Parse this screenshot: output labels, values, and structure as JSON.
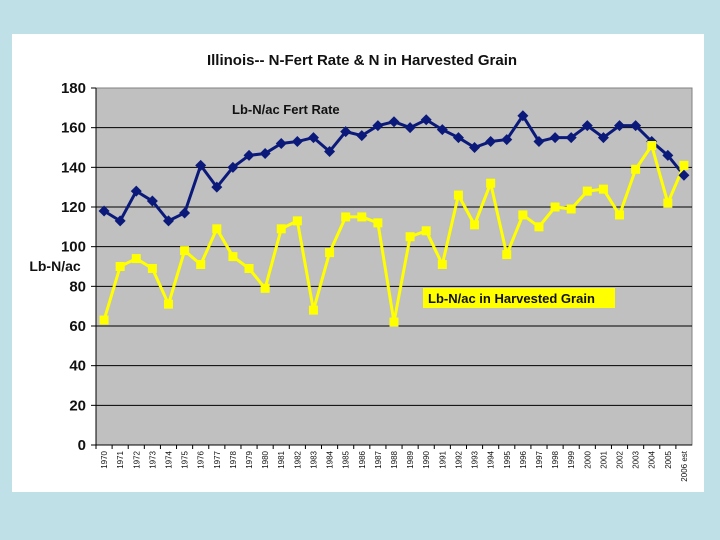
{
  "colors": {
    "background": "#bfe0e6",
    "plot_area": "#c0c0c0",
    "fert_series": "#0b1a7a",
    "grain_series": "#ffff00",
    "grain_label_bg": "#ffff00"
  },
  "chart_data": {
    "type": "line",
    "title": "Illinois-- N-Fert Rate & N in Harvested Grain",
    "xlabel": "",
    "ylabel": "Lb-N/ac",
    "ylim": [
      0,
      180
    ],
    "yticks": [
      0,
      20,
      40,
      60,
      80,
      100,
      120,
      140,
      160,
      180
    ],
    "grid": true,
    "categories": [
      "1970",
      "1971",
      "1972",
      "1973",
      "1974",
      "1975",
      "1976",
      "1977",
      "1978",
      "1979",
      "1980",
      "1981",
      "1982",
      "1983",
      "1984",
      "1985",
      "1986",
      "1987",
      "1988",
      "1989",
      "1990",
      "1991",
      "1992",
      "1993",
      "1994",
      "1995",
      "1996",
      "1997",
      "1998",
      "1999",
      "2000",
      "2001",
      "2002",
      "2003",
      "2004",
      "2005",
      "2006 est"
    ],
    "series": [
      {
        "name": "Lb-N/ac Fert Rate",
        "marker": "diamond",
        "color": "#0b1a7a",
        "values": [
          118,
          113,
          128,
          123,
          113,
          117,
          141,
          130,
          140,
          146,
          147,
          152,
          153,
          155,
          148,
          158,
          156,
          161,
          163,
          160,
          164,
          159,
          155,
          150,
          153,
          154,
          166,
          153,
          155,
          155,
          161,
          155,
          161,
          161,
          153,
          146,
          136
        ]
      },
      {
        "name": "Lb-N/ac in Harvested Grain",
        "marker": "square",
        "color": "#ffff00",
        "values": [
          63,
          90,
          94,
          89,
          71,
          98,
          91,
          109,
          95,
          89,
          79,
          109,
          113,
          68,
          97,
          115,
          115,
          112,
          62,
          105,
          108,
          91,
          126,
          111,
          132,
          96,
          116,
          110,
          120,
          119,
          128,
          129,
          116,
          139,
          151,
          122,
          141
        ]
      }
    ]
  }
}
